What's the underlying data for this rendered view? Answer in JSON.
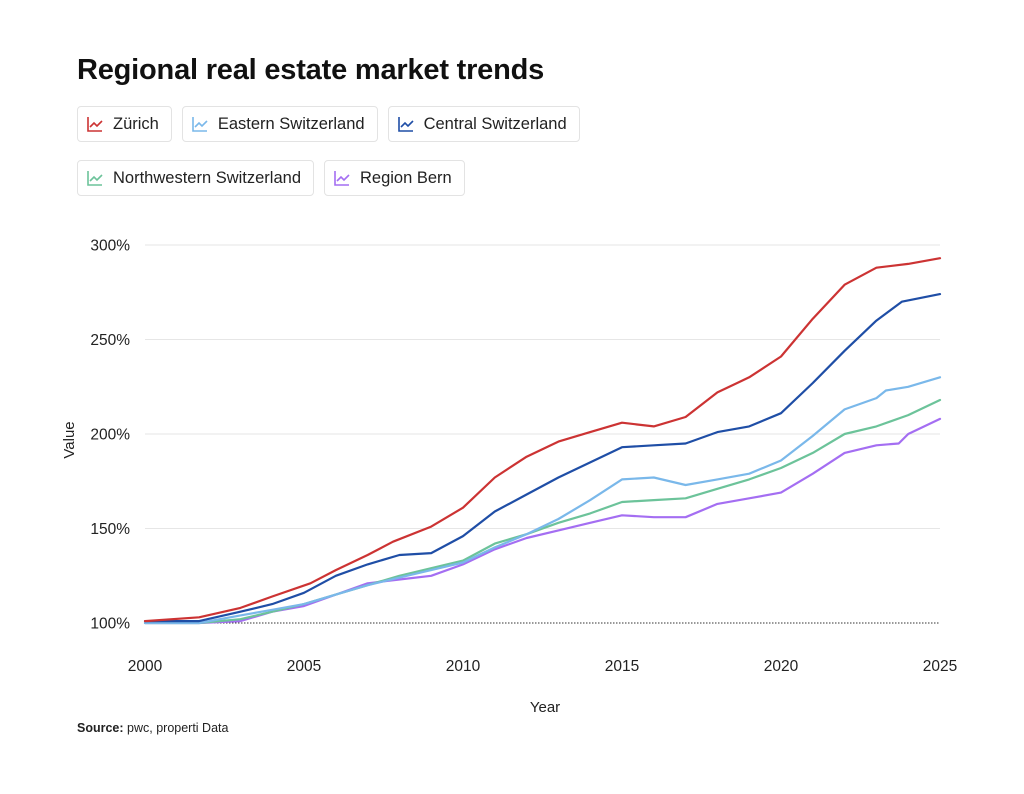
{
  "chart_data": {
    "type": "line",
    "title": "Regional real estate market trends",
    "xlabel": "Year",
    "ylabel": "Value",
    "x_ticks": [
      "2000",
      "2005",
      "2010",
      "2015",
      "2020",
      "2025"
    ],
    "y_ticks": [
      "100%",
      "150%",
      "200%",
      "250%",
      "300%"
    ],
    "xlim": [
      2000,
      2025
    ],
    "ylim": [
      100,
      300
    ],
    "series": [
      {
        "name": "Zürich",
        "color": "#cc3333",
        "points": [
          [
            2000,
            101
          ],
          [
            2001.7,
            103
          ],
          [
            2003,
            108
          ],
          [
            2004,
            114
          ],
          [
            2005.2,
            121
          ],
          [
            2006,
            128
          ],
          [
            2007,
            136
          ],
          [
            2007.8,
            143
          ],
          [
            2009,
            151
          ],
          [
            2010,
            161
          ],
          [
            2011,
            177
          ],
          [
            2012,
            188
          ],
          [
            2013,
            196
          ],
          [
            2014,
            201
          ],
          [
            2015,
            206
          ],
          [
            2016,
            204
          ],
          [
            2017,
            209
          ],
          [
            2018,
            222
          ],
          [
            2019,
            230
          ],
          [
            2020,
            241
          ],
          [
            2021,
            261
          ],
          [
            2022,
            279
          ],
          [
            2023,
            288
          ],
          [
            2024,
            290
          ],
          [
            2025,
            293
          ]
        ]
      },
      {
        "name": "Eastern Switzerland",
        "color": "#7ab8ea",
        "points": [
          [
            2000,
            100
          ],
          [
            2001.7,
            100
          ],
          [
            2003,
            104
          ],
          [
            2004,
            107
          ],
          [
            2005,
            110
          ],
          [
            2006,
            115
          ],
          [
            2007,
            120
          ],
          [
            2008,
            124
          ],
          [
            2009,
            128
          ],
          [
            2010,
            132
          ],
          [
            2011,
            140
          ],
          [
            2012,
            147
          ],
          [
            2013,
            155
          ],
          [
            2014,
            165
          ],
          [
            2015,
            176
          ],
          [
            2016,
            177
          ],
          [
            2017,
            173
          ],
          [
            2018,
            176
          ],
          [
            2019,
            179
          ],
          [
            2020,
            186
          ],
          [
            2021,
            199
          ],
          [
            2022,
            213
          ],
          [
            2023,
            219
          ],
          [
            2023.3,
            223
          ],
          [
            2024,
            225
          ],
          [
            2025,
            230
          ]
        ]
      },
      {
        "name": "Central Switzerland",
        "color": "#1f4ea6",
        "points": [
          [
            2000,
            101
          ],
          [
            2001.7,
            101
          ],
          [
            2003,
            106
          ],
          [
            2004,
            110
          ],
          [
            2005,
            116
          ],
          [
            2006,
            125
          ],
          [
            2007,
            131
          ],
          [
            2008,
            136
          ],
          [
            2009,
            137
          ],
          [
            2010,
            146
          ],
          [
            2011,
            159
          ],
          [
            2012,
            168
          ],
          [
            2013,
            177
          ],
          [
            2014,
            185
          ],
          [
            2015,
            193
          ],
          [
            2016,
            194
          ],
          [
            2017,
            195
          ],
          [
            2018,
            201
          ],
          [
            2019,
            204
          ],
          [
            2020,
            211
          ],
          [
            2021,
            227
          ],
          [
            2022,
            244
          ],
          [
            2023,
            260
          ],
          [
            2023.8,
            270
          ],
          [
            2025,
            274
          ]
        ]
      },
      {
        "name": "Northwestern Switzerland",
        "color": "#6cc39a",
        "points": [
          [
            2000,
            100
          ],
          [
            2001.7,
            100
          ],
          [
            2003,
            102
          ],
          [
            2004,
            106
          ],
          [
            2005,
            110
          ],
          [
            2006,
            115
          ],
          [
            2007,
            120
          ],
          [
            2008,
            125
          ],
          [
            2009,
            129
          ],
          [
            2010,
            133
          ],
          [
            2011,
            142
          ],
          [
            2012,
            147
          ],
          [
            2013,
            153
          ],
          [
            2014,
            158
          ],
          [
            2015,
            164
          ],
          [
            2016,
            165
          ],
          [
            2017,
            166
          ],
          [
            2018,
            171
          ],
          [
            2019,
            176
          ],
          [
            2020,
            182
          ],
          [
            2021,
            190
          ],
          [
            2022,
            200
          ],
          [
            2023,
            204
          ],
          [
            2024,
            210
          ],
          [
            2025,
            218
          ]
        ]
      },
      {
        "name": "Region Bern",
        "color": "#a46ef2",
        "points": [
          [
            2000,
            100
          ],
          [
            2001.7,
            100
          ],
          [
            2003,
            101
          ],
          [
            2004,
            106
          ],
          [
            2005,
            109
          ],
          [
            2006,
            115
          ],
          [
            2007,
            121
          ],
          [
            2008,
            123
          ],
          [
            2009,
            125
          ],
          [
            2010,
            131
          ],
          [
            2011,
            139
          ],
          [
            2012,
            145
          ],
          [
            2013,
            149
          ],
          [
            2014,
            153
          ],
          [
            2015,
            157
          ],
          [
            2016,
            156
          ],
          [
            2017,
            156
          ],
          [
            2018,
            163
          ],
          [
            2019,
            166
          ],
          [
            2020,
            169
          ],
          [
            2021,
            179
          ],
          [
            2022,
            190
          ],
          [
            2023,
            194
          ],
          [
            2023.7,
            195
          ],
          [
            2024,
            200
          ],
          [
            2025,
            208
          ]
        ]
      }
    ]
  },
  "source": {
    "label": "Source:",
    "text": "pwc, properti Data"
  }
}
